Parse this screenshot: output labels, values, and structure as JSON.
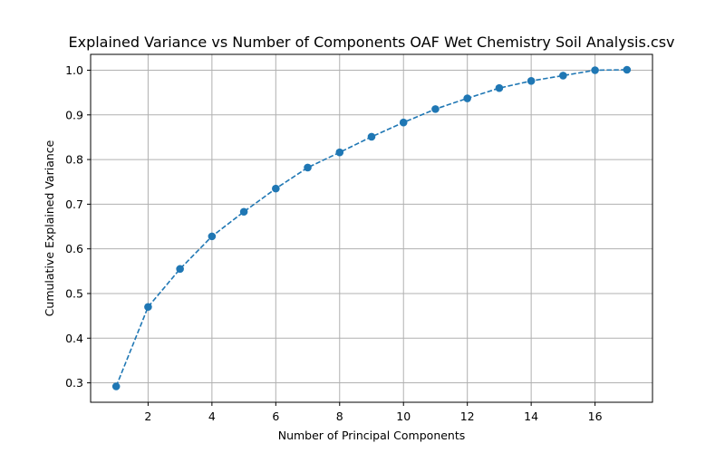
{
  "chart_data": {
    "type": "line",
    "title": "Explained Variance vs Number of Components OAF Wet Chemistry Soil Analysis.csv",
    "xlabel": "Number of Principal Components",
    "ylabel": "Cumulative Explained Variance",
    "x": [
      1,
      2,
      3,
      4,
      5,
      6,
      7,
      8,
      9,
      10,
      11,
      12,
      13,
      14,
      15,
      16,
      17
    ],
    "series": [
      {
        "values": [
          0.292,
          0.47,
          0.555,
          0.628,
          0.683,
          0.735,
          0.782,
          0.816,
          0.851,
          0.883,
          0.913,
          0.937,
          0.96,
          0.976,
          0.988,
          1.0,
          1.001
        ],
        "color": "#1f77b4",
        "linestyle": "dashed",
        "marker": "circle"
      }
    ],
    "xticks": [
      2,
      4,
      6,
      8,
      10,
      12,
      14,
      16
    ],
    "yticks": [
      0.3,
      0.4,
      0.5,
      0.6,
      0.7,
      0.8,
      0.9,
      1.0
    ],
    "xlim": [
      0.2,
      17.8
    ],
    "ylim": [
      0.2565,
      1.0355
    ],
    "grid": true
  }
}
